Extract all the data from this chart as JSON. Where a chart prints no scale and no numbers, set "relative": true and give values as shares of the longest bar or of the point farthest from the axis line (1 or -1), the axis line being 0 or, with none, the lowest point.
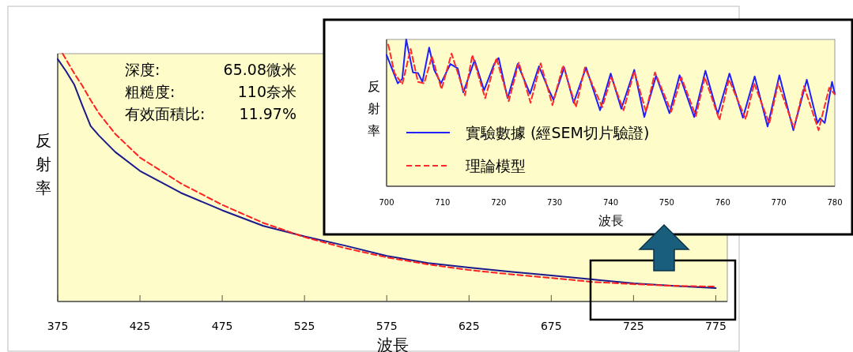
{
  "chart_data": [
    {
      "type": "line",
      "relative": true,
      "xlabel": "波長",
      "ylabel": "反射率",
      "xlim": [
        375,
        782
      ],
      "xticks": [
        375,
        425,
        475,
        525,
        575,
        625,
        675,
        725,
        775
      ],
      "annotations": [
        "深度:",
        "65.08微米",
        "粗糙度:",
        "110奈米",
        "有效面積比:",
        "11.97%"
      ],
      "series": [
        {
          "color": "#1a1a8c",
          "line_style": "solid",
          "x": [
            375,
            380,
            385,
            390,
            395,
            400,
            410,
            425,
            450,
            475,
            500,
            525,
            550,
            575,
            600,
            625,
            650,
            675,
            700,
            725,
            750,
            775
          ],
          "values": [
            0.978,
            0.93,
            0.876,
            0.79,
            0.708,
            0.67,
            0.603,
            0.527,
            0.438,
            0.368,
            0.305,
            0.263,
            0.225,
            0.184,
            0.155,
            0.137,
            0.12,
            0.105,
            0.089,
            0.073,
            0.063,
            0.054
          ]
        },
        {
          "color": "#ff2020",
          "line_style": "dashed",
          "x": [
            378,
            385,
            390,
            395,
            400,
            410,
            425,
            450,
            475,
            500,
            525,
            550,
            575,
            600,
            625,
            650,
            675,
            700,
            725,
            750,
            775
          ],
          "values": [
            1.0,
            0.921,
            0.87,
            0.813,
            0.76,
            0.676,
            0.581,
            0.476,
            0.39,
            0.317,
            0.26,
            0.215,
            0.178,
            0.15,
            0.127,
            0.11,
            0.095,
            0.079,
            0.07,
            0.063,
            0.06
          ]
        }
      ]
    },
    {
      "type": "line",
      "relative": true,
      "xlabel": "波長",
      "ylabel": "反射率",
      "xlim": [
        700,
        780
      ],
      "xticks": [
        700,
        710,
        720,
        730,
        740,
        750,
        760,
        770,
        780
      ],
      "legend": "bottom left",
      "series": [
        {
          "name": "實驗數據 (經SEM切片驗證)",
          "color": "#1f1fff",
          "line_style": "solid",
          "x": [
            700,
            702,
            702.8,
            703.5,
            704.7,
            705.6,
            706.4,
            707.6,
            708.5,
            709.7,
            711.4,
            712.7,
            713.7,
            715.7,
            717.4,
            719.2,
            720,
            721.6,
            723.4,
            725.6,
            727.2,
            728.9,
            729.8,
            731.7,
            733.4,
            735.6,
            738.1,
            740,
            741.9,
            744.2,
            746,
            748.1,
            750.5,
            752.3,
            754.9,
            756.9,
            759.1,
            761.2,
            763.6,
            765.7,
            768,
            770.1,
            772.6,
            775,
            776.9,
            777.4,
            778.2,
            779.5,
            780
          ],
          "values": [
            0.894,
            0.701,
            0.732,
            1.0,
            0.776,
            0.772,
            0.711,
            0.945,
            0.793,
            0.701,
            0.833,
            0.803,
            0.64,
            0.858,
            0.654,
            0.833,
            0.874,
            0.6,
            0.833,
            0.63,
            0.817,
            0.661,
            0.589,
            0.809,
            0.569,
            0.809,
            0.518,
            0.768,
            0.528,
            0.793,
            0.472,
            0.752,
            0.498,
            0.756,
            0.472,
            0.787,
            0.492,
            0.768,
            0.467,
            0.748,
            0.407,
            0.756,
            0.382,
            0.726,
            0.431,
            0.463,
            0.431,
            0.711,
            0.63
          ]
        },
        {
          "name": "理論模型",
          "color": "#ff2a2a",
          "line_style": "dashed",
          "x": [
            700.3,
            701.4,
            702.8,
            704.3,
            705.6,
            706.7,
            708.1,
            709.8,
            711.6,
            714,
            715.3,
            717.6,
            719.6,
            721.8,
            723.6,
            725.7,
            727.5,
            729.6,
            731.5,
            733.8,
            735.4,
            738.5,
            740.1,
            742.3,
            744.2,
            746.3,
            747.9,
            750.8,
            752.6,
            755.2,
            756.8,
            759.4,
            761.1,
            764.1,
            765.6,
            768.3,
            769.9,
            772.7,
            774.5,
            777.1,
            779,
            780
          ],
          "values": [
            0.965,
            0.772,
            0.695,
            0.935,
            0.711,
            0.701,
            0.884,
            0.661,
            0.904,
            0.62,
            0.894,
            0.6,
            0.874,
            0.579,
            0.843,
            0.569,
            0.837,
            0.553,
            0.823,
            0.539,
            0.809,
            0.539,
            0.742,
            0.518,
            0.783,
            0.508,
            0.776,
            0.508,
            0.742,
            0.478,
            0.742,
            0.451,
            0.728,
            0.457,
            0.701,
            0.427,
            0.701,
            0.396,
            0.681,
            0.382,
            0.671,
            0.626
          ]
        }
      ]
    }
  ]
}
